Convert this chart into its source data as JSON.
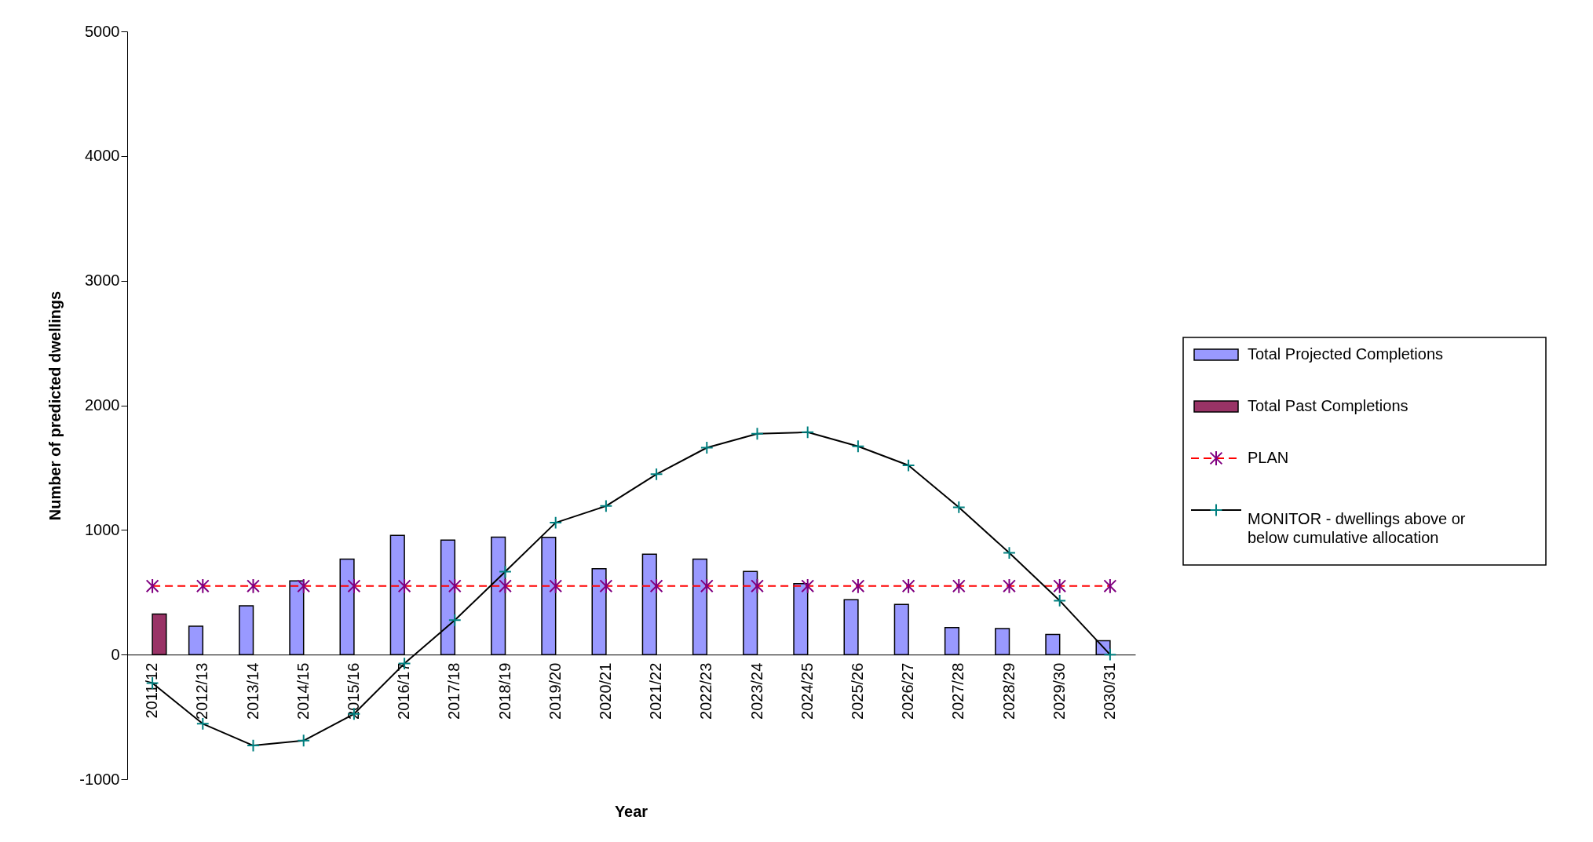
{
  "chart_data": {
    "type": "bar",
    "xlabel": "Year",
    "ylabel": "Number of predicted dwellings",
    "categories": [
      "2011/12",
      "2012/13",
      "2013/14",
      "2014/15",
      "2015/16",
      "2016/17",
      "2017/18",
      "2018/19",
      "2019/20",
      "2020/21",
      "2021/22",
      "2022/23",
      "2023/24",
      "2024/25",
      "2025/26",
      "2026/27",
      "2027/28",
      "2028/29",
      "2029/30",
      "2030/31"
    ],
    "series": [
      {
        "name": "Total Projected Completions",
        "color": "#9999ff",
        "values": [
          null,
          227,
          391,
          591,
          766,
          957,
          919,
          943,
          941,
          689,
          806,
          766,
          667,
          569,
          440,
          403,
          216,
          209,
          161,
          111
        ]
      },
      {
        "name": "Total Past Completions",
        "color": "#993366",
        "values": [
          325,
          null,
          null,
          null,
          null,
          null,
          null,
          null,
          null,
          null,
          null,
          null,
          null,
          null,
          null,
          null,
          null,
          null,
          null,
          null
        ]
      },
      {
        "name": "PLAN",
        "type": "line",
        "color": "#ff0000",
        "marker": "cross",
        "line_style": "dashed",
        "values": [
          550,
          550,
          550,
          550,
          550,
          550,
          550,
          550,
          550,
          550,
          550,
          550,
          550,
          550,
          550,
          550,
          550,
          550,
          550,
          550
        ]
      },
      {
        "name": "MONITOR - dwellings above or below cumulative allocation",
        "type": "line",
        "color": "#000000",
        "marker": "cross",
        "line_style": "solid",
        "values": [
          -229,
          -555,
          -730,
          -690,
          -476,
          -72,
          276,
          665,
          1058,
          1192,
          1447,
          1660,
          1772,
          1784,
          1671,
          1518,
          1182,
          816,
          433,
          0
        ]
      }
    ],
    "ylim": [
      -1000,
      5000
    ],
    "yticks": [
      -1000,
      0,
      1000,
      2000,
      3000,
      4000,
      5000
    ],
    "grid": false,
    "legend": "right"
  }
}
